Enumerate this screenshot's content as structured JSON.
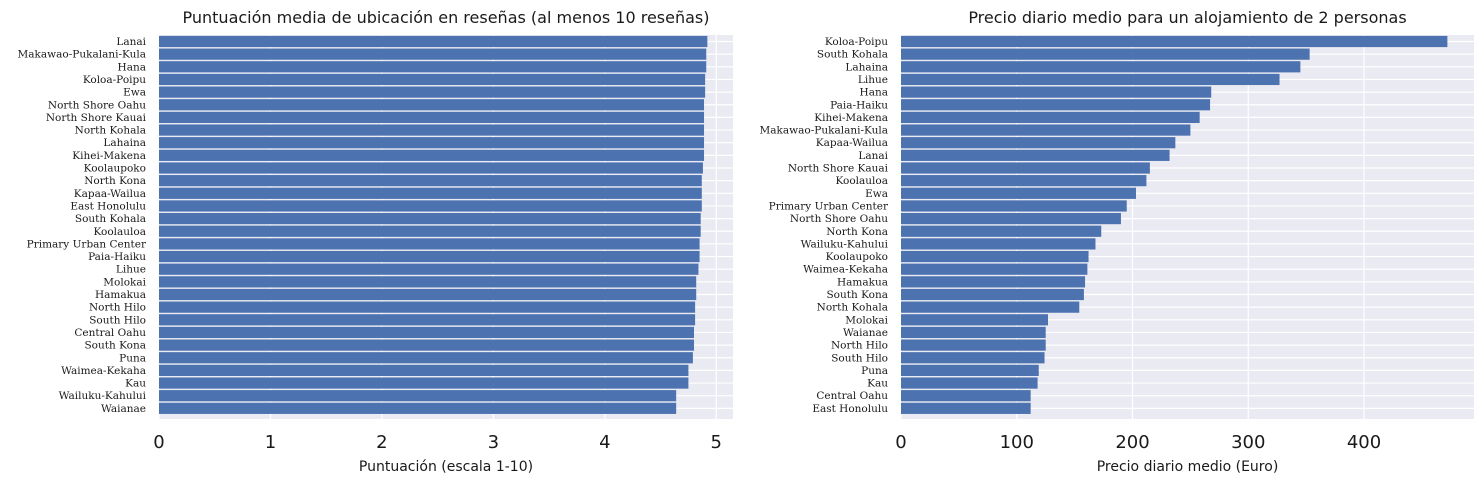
{
  "chart_data": [
    {
      "type": "bar",
      "orientation": "horizontal",
      "title": "Puntuación media de ubicación en reseñas (al menos 10 reseñas)",
      "xlabel": "Puntuación (escala 1-10)",
      "ylabel": "",
      "xlim": [
        0,
        5.15
      ],
      "xticks": [
        0,
        1,
        2,
        3,
        4,
        5
      ],
      "grid": true,
      "categories": [
        "Lanai",
        "Makawao-Pukalani-Kula",
        "Hana",
        "Koloa-Poipu",
        "Ewa",
        "North Shore Oahu",
        "North Shore Kauai",
        "North Kohala",
        "Lahaina",
        "Kihei-Makena",
        "Koolaupoko",
        "North Kona",
        "Kapaa-Wailua",
        "East Honolulu",
        "South Kohala",
        "Koolauloa",
        "Primary Urban Center",
        "Paia-Haiku",
        "Lihue",
        "Molokai",
        "Hamakua",
        "North Hilo",
        "South Hilo",
        "Central Oahu",
        "South Kona",
        "Puna",
        "Waimea-Kekaha",
        "Kau",
        "Wailuku-Kahului",
        "Waianae"
      ],
      "values": [
        4.92,
        4.91,
        4.91,
        4.9,
        4.9,
        4.89,
        4.89,
        4.89,
        4.89,
        4.89,
        4.88,
        4.87,
        4.87,
        4.87,
        4.86,
        4.86,
        4.85,
        4.85,
        4.84,
        4.82,
        4.82,
        4.81,
        4.81,
        4.8,
        4.8,
        4.79,
        4.75,
        4.75,
        4.64,
        4.64
      ]
    },
    {
      "type": "bar",
      "orientation": "horizontal",
      "title": "Precio diario medio para un alojamiento de 2 personas",
      "xlabel": "Precio diario medio (Euro)",
      "ylabel": "",
      "xlim": [
        0,
        495
      ],
      "xticks": [
        0,
        100,
        200,
        300,
        400
      ],
      "grid": true,
      "categories": [
        "Koloa-Poipu",
        "South Kohala",
        "Lahaina",
        "Lihue",
        "Hana",
        "Paia-Haiku",
        "Kihei-Makena",
        "Makawao-Pukalani-Kula",
        "Kapaa-Wailua",
        "Lanai",
        "North Shore Kauai",
        "Koolauloa",
        "Ewa",
        "Primary Urban Center",
        "North Shore Oahu",
        "North Kona",
        "Wailuku-Kahului",
        "Koolaupoko",
        "Waimea-Kekaha",
        "Hamakua",
        "South Kona",
        "North Kohala",
        "Molokai",
        "Waianae",
        "North Hilo",
        "South Hilo",
        "Puna",
        "Kau",
        "Central Oahu",
        "East Honolulu"
      ],
      "values": [
        472,
        353,
        345,
        327,
        268,
        267,
        258,
        250,
        237,
        232,
        215,
        212,
        203,
        195,
        190,
        173,
        168,
        162,
        161,
        159,
        158,
        154,
        127,
        125,
        125,
        124,
        119,
        118,
        112,
        112
      ]
    }
  ]
}
